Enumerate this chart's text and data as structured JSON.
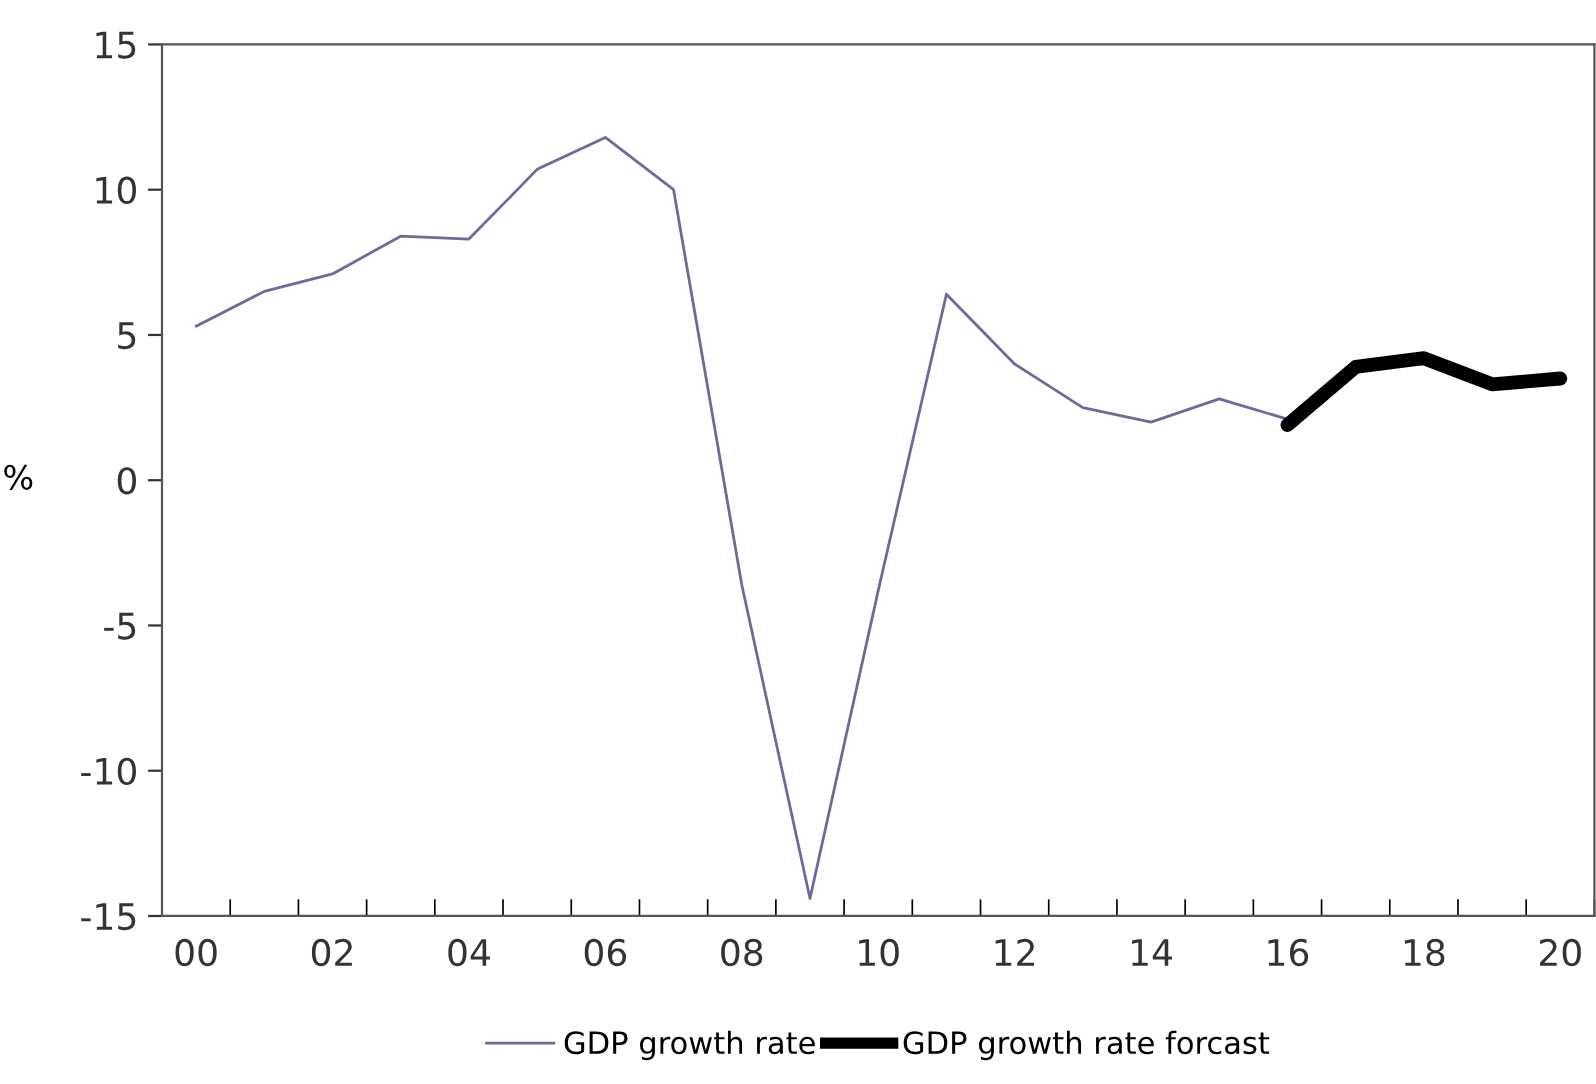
{
  "chart_data": {
    "type": "line",
    "categories": [
      "00",
      null,
      "02",
      null,
      "04",
      null,
      "06",
      null,
      "08",
      null,
      "10",
      null,
      "12",
      null,
      "14",
      null,
      "16",
      null,
      "18",
      null,
      "20"
    ],
    "ylabel": "%",
    "ylim": [
      -15,
      15
    ],
    "yticks": [
      -15,
      -10,
      -5,
      0,
      5,
      10,
      15
    ],
    "series": [
      {
        "name": "GDP growth rate",
        "color": "#6b6b9b",
        "values": [
          5.3,
          6.5,
          7.1,
          8.4,
          8.3,
          10.7,
          11.8,
          10.0,
          -3.6,
          -14.4,
          -3.8,
          6.4,
          4.0,
          2.5,
          2.0,
          2.8,
          2.1,
          null,
          null,
          null,
          null
        ]
      },
      {
        "name": "GDP growth rate forcast",
        "color": "#000000",
        "values": [
          null,
          null,
          null,
          null,
          null,
          null,
          null,
          null,
          null,
          null,
          null,
          null,
          null,
          null,
          null,
          null,
          1.9,
          3.9,
          4.2,
          3.3,
          3.5
        ]
      }
    ],
    "grid": false,
    "legend": "bottom",
    "marker": "none",
    "line_style": "solid"
  }
}
